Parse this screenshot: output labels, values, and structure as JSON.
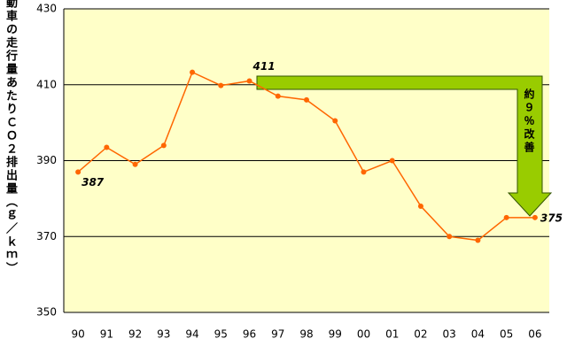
{
  "chart_data": {
    "type": "line",
    "y_label": "動車の走行量あたりＣＯ２排出量（ｇ／ｋｍ）",
    "annotation": "約９％改善",
    "categories": [
      "90",
      "91",
      "92",
      "93",
      "94",
      "95",
      "96",
      "97",
      "98",
      "99",
      "00",
      "01",
      "02",
      "03",
      "04",
      "05",
      "06"
    ],
    "values": [
      387,
      393.5,
      389,
      394,
      413.3,
      409.8,
      411,
      407,
      406,
      400.5,
      387,
      390,
      378,
      370,
      369,
      375,
      375
    ],
    "value_labels": [
      "387",
      null,
      null,
      null,
      null,
      null,
      "411",
      null,
      null,
      null,
      null,
      null,
      null,
      null,
      null,
      null,
      "375"
    ],
    "color": "#ff6600",
    "ylim": [
      350,
      430
    ],
    "yticks": [
      350,
      370,
      390,
      410,
      430
    ],
    "grid": true
  }
}
